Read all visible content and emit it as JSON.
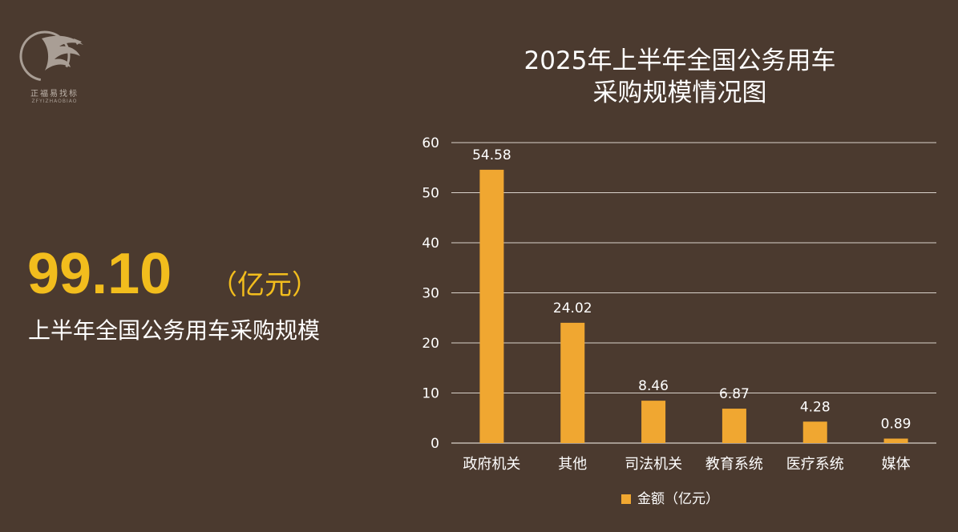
{
  "logo": {
    "name_cn": "正福易找标",
    "name_en": "ZFYIZHAOBIAO"
  },
  "kpi": {
    "value": "99.10",
    "unit": "（亿元）",
    "label": "上半年全国公务用车采购规模"
  },
  "colors": {
    "background": "#4b3a2f",
    "bar": "#f0a731",
    "kpi": "#f2bd1d",
    "grid": "#d9d2cb"
  },
  "chart_data": {
    "type": "bar",
    "title_lines": [
      "2025年上半年全国公务用车",
      "采购规模情况图"
    ],
    "categories": [
      "政府机关",
      "其他",
      "司法机关",
      "教育系统",
      "医疗系统",
      "媒体"
    ],
    "series": [
      {
        "name": "金额（亿元）",
        "values": [
          54.58,
          24.02,
          8.46,
          6.87,
          4.28,
          0.89
        ],
        "labels": [
          "54.58",
          "24.02",
          "8.46",
          "6.87",
          "4.28",
          "0.89"
        ]
      }
    ],
    "ylim": [
      0,
      60
    ],
    "yticks": [
      0,
      10,
      20,
      30,
      40,
      50,
      60
    ],
    "grid": true,
    "legend": "bottom",
    "xlabel": "",
    "ylabel": ""
  }
}
